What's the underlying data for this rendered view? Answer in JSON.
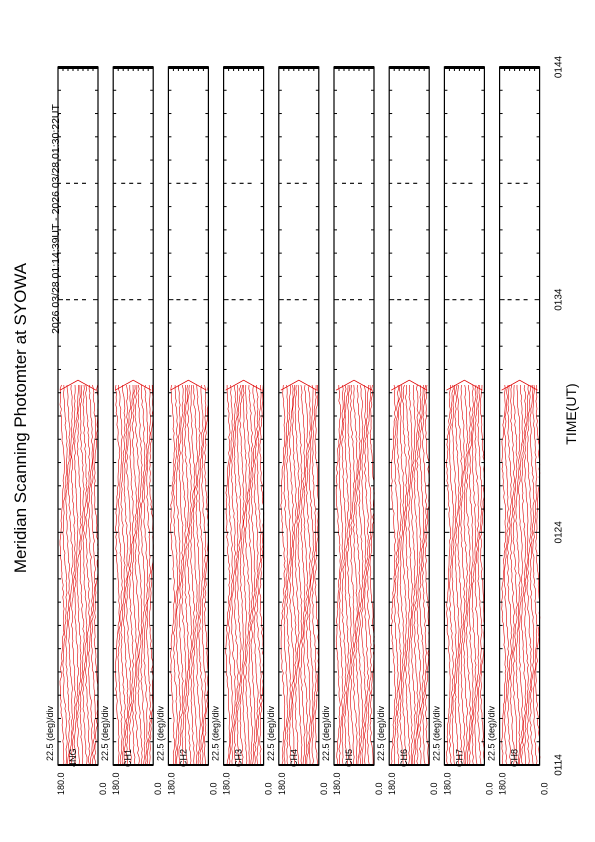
{
  "chart_data": {
    "type": "line",
    "title": "Meridian Scanning Photomter at SYOWA",
    "subtitle": "2026 03/28 01:14:39UT - 2026 03/28 01:30:22UT",
    "xlabel": "TIME(UT)",
    "x_ticks": [
      "0114",
      "0124",
      "0134",
      "0144"
    ],
    "x_range": [
      "01:14",
      "01:44"
    ],
    "data_end": "01:30:22",
    "scale_label": "22.5 (deg)/div",
    "y_min_label": "0.0",
    "y_max_label": "180.0",
    "y_range": [
      0,
      180
    ],
    "line_color": "#e00000",
    "panels": [
      {
        "channel": "4NG"
      },
      {
        "channel": "CH1"
      },
      {
        "channel": "CH2"
      },
      {
        "channel": "CH3"
      },
      {
        "channel": "CH4"
      },
      {
        "channel": "CH5"
      },
      {
        "channel": "CH6"
      },
      {
        "channel": "CH7"
      },
      {
        "channel": "CH8"
      }
    ]
  }
}
